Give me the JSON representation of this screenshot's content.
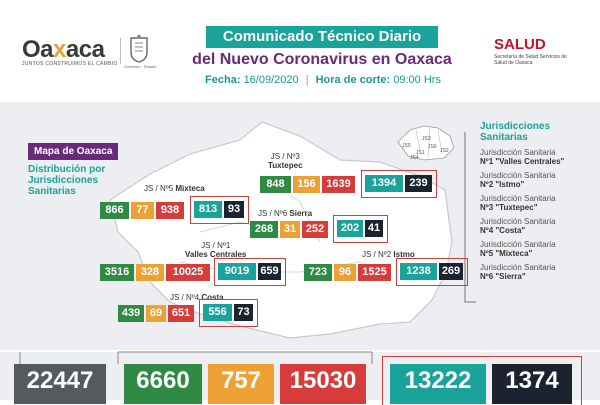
{
  "header": {
    "logo_left": "Oa",
    "logo_x": "x",
    "logo_right": "aca",
    "logo_tagline": "JUNTOS CONSTRUIMOS EL CAMBIO",
    "seal_caption": "Gobierno · Estado",
    "title_line1": "Comunicado Técnico Diario",
    "title_line2": "del Nuevo Coronavirus en Oaxaca",
    "fecha_label": "Fecha:",
    "fecha": "16/09/2020",
    "sep": "|",
    "hora_label": "Hora de corte:",
    "hora": "09:00 Hrs",
    "salud": "SALUD",
    "salud_sub": "Secretaría de Salud Servicios de Salud de Oaxaca"
  },
  "map": {
    "tag": "Mapa de Oaxaca",
    "subtitle": "Distribución por Jurisdicciones Sanitarias"
  },
  "jurisdictions": [
    {
      "label_num": "JS / Nº3",
      "label_name": "Tuxtepec",
      "values": [
        "848",
        "156",
        "1639",
        "1394",
        "239"
      ]
    },
    {
      "label_num": "JS / Nº5",
      "label_name": "Mixteca",
      "values": [
        "866",
        "77",
        "938",
        "813",
        "93"
      ]
    },
    {
      "label_num": "JS / Nº6",
      "label_name": "Sierra",
      "values": [
        "268",
        "31",
        "252",
        "202",
        "41"
      ]
    },
    {
      "label_num": "JS / Nº1",
      "label_name": "Valles Centrales",
      "values": [
        "3516",
        "328",
        "10025",
        "9019",
        "659"
      ]
    },
    {
      "label_num": "JS / Nº2",
      "label_name": "Istmo",
      "values": [
        "723",
        "96",
        "1525",
        "1238",
        "269"
      ]
    },
    {
      "label_num": "JS / Nº4",
      "label_name": "Costa",
      "values": [
        "439",
        "69",
        "651",
        "556",
        "73"
      ]
    }
  ],
  "legend": {
    "title": "Jurisdicciones Sanitarias",
    "items": [
      {
        "a": "Jurisdicción Sanitaria",
        "b": "Nº1 \"Valles Centrales\""
      },
      {
        "a": "Jurisdicción Sanitaria",
        "b": "Nº2 \"Istmo\""
      },
      {
        "a": "Jurisdicción Sanitaria",
        "b": "Nº3 \"Tuxtepec\""
      },
      {
        "a": "Jurisdicción Sanitaria",
        "b": "Nº4 \"Costa\""
      },
      {
        "a": "Jurisdicción Sanitaria",
        "b": "Nº5 \"Mixteca\""
      },
      {
        "a": "Jurisdicción Sanitaria",
        "b": "Nº6 \"Sierra\""
      }
    ],
    "mini_labels": [
      "JS3",
      "JS5",
      "JS6",
      "JS1",
      "JS4",
      "JS2"
    ]
  },
  "totals": [
    "22447",
    "6660",
    "757",
    "15030",
    "13222",
    "1374"
  ],
  "colors": {
    "teal": "#1aa39a",
    "purple": "#6a2a7a",
    "green": "#2f8a43",
    "orange": "#eda134",
    "red": "#d63c3a",
    "navy": "#1b2230",
    "gray": "#555a61"
  }
}
